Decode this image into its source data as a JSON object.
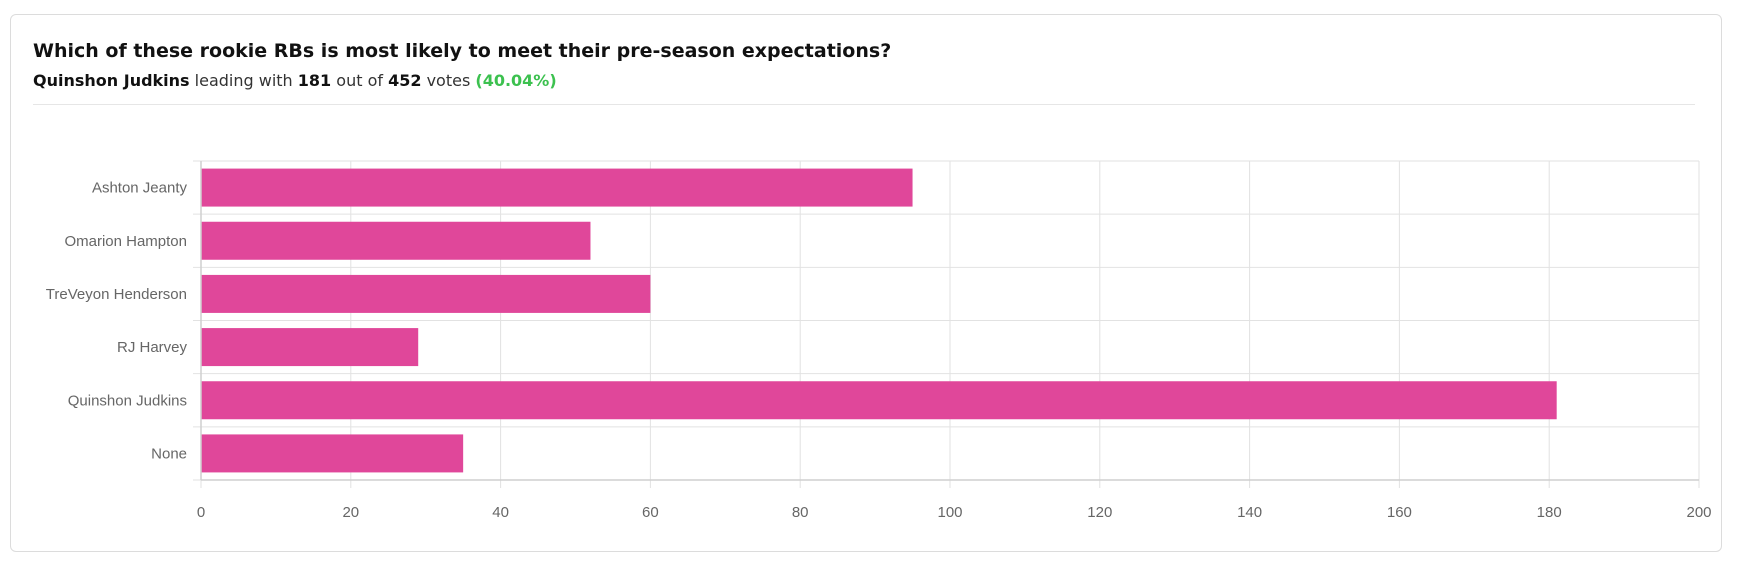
{
  "header": {
    "question": "Which of these rookie RBs is most likely to meet their pre-season expectations?",
    "leader_name": "Quinshon Judkins",
    "leading_with_text": " leading with ",
    "leader_votes": "181",
    "out_of_text": " out of ",
    "total_votes": "452",
    "votes_text": " votes ",
    "leader_percent": "(40.04%)"
  },
  "chart_data": {
    "type": "bar",
    "orientation": "horizontal",
    "categories": [
      "Ashton Jeanty",
      "Omarion Hampton",
      "TreVeyon Henderson",
      "RJ Harvey",
      "Quinshon Judkins",
      "None"
    ],
    "values": [
      95,
      52,
      60,
      29,
      181,
      35
    ],
    "xlim": [
      0,
      200
    ],
    "xticks": [
      0,
      20,
      40,
      60,
      80,
      100,
      120,
      140,
      160,
      180,
      200
    ],
    "grid": true,
    "bar_color": "#e0479a"
  }
}
